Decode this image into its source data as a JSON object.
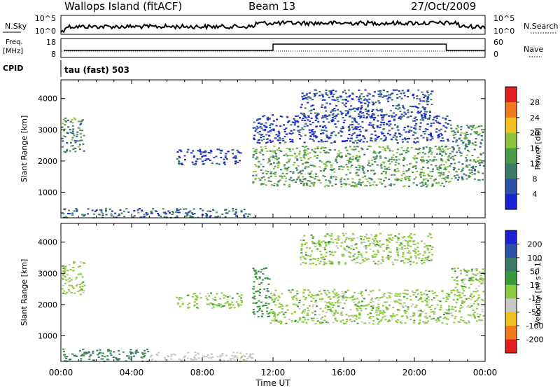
{
  "header": {
    "title": "Wallops Island (fitACF)",
    "beam": "Beam 13",
    "date": "27/Oct/2009"
  },
  "summary_panels": {
    "nsky_label": "N.Sky",
    "nsky_ticks": [
      "10^5",
      "10^0"
    ],
    "nsearch_label": "N.Search",
    "nsearch_ticks": [
      "10^5",
      "10^0"
    ],
    "freq_label": "Freq.",
    "freq_unit": "[MHz]",
    "freq_ticks": [
      "18",
      "8"
    ],
    "nave_label": "Nave",
    "nave_ticks": [
      "60",
      "0"
    ],
    "cpid_label": "CPID",
    "cpid_value": "tau (fast) 503"
  },
  "chart_data": [
    {
      "type": "heatmap",
      "name": "power",
      "ylabel": "Slant Range [km]",
      "yticks": [
        1000,
        2000,
        3000,
        4000
      ],
      "ylim": [
        180,
        4600
      ],
      "xlim": [
        0,
        24
      ],
      "colorbar_label": "Power [dB]",
      "colorbar_ticks": [
        4,
        8,
        12,
        16,
        20,
        24,
        28
      ],
      "colors": [
        "#1a22d6",
        "#2c51a8",
        "#3a7a6a",
        "#4a9a4a",
        "#8cc43c",
        "#f0c020",
        "#f07a20",
        "#e41e1e"
      ],
      "regions": [
        {
          "t0": 0.0,
          "t1": 1.3,
          "r0": 2300,
          "r1": 3400,
          "value": 14
        },
        {
          "t0": 0.0,
          "t1": 11.0,
          "r0": 200,
          "r1": 500,
          "value": 10
        },
        {
          "t0": 6.5,
          "t1": 10.2,
          "r0": 1900,
          "r1": 2400,
          "value": 6
        },
        {
          "t0": 10.8,
          "t1": 22.0,
          "r0": 1200,
          "r1": 2500,
          "value": 16
        },
        {
          "t0": 10.8,
          "t1": 22.0,
          "r0": 2600,
          "r1": 3500,
          "value": 6
        },
        {
          "t0": 13.5,
          "t1": 21.0,
          "r0": 3400,
          "r1": 4300,
          "value": 8
        },
        {
          "t0": 22.0,
          "t1": 23.9,
          "r0": 1400,
          "r1": 3200,
          "value": 14
        }
      ]
    },
    {
      "type": "heatmap",
      "name": "velocity",
      "ylabel": "Slant Range [km]",
      "yticks": [
        1000,
        2000,
        3000,
        4000
      ],
      "ylim": [
        180,
        4600
      ],
      "xlim": [
        0,
        24
      ],
      "colorbar_label": "Velocity [m s^-1]",
      "colorbar_ticks": [
        200,
        100,
        50,
        15,
        -15,
        -50,
        -100,
        -200
      ],
      "colors": [
        "#1a22d6",
        "#2c51a8",
        "#3a7a6a",
        "#3a9a3a",
        "#8ccc3c",
        "#c8c8c8",
        "#f0c020",
        "#f07a20",
        "#e41e1e"
      ],
      "regions": [
        {
          "t0": 0.0,
          "t1": 1.3,
          "r0": 2300,
          "r1": 3400,
          "value": 0
        },
        {
          "t0": 0.0,
          "t1": 5.0,
          "r0": 200,
          "r1": 600,
          "value": 60
        },
        {
          "t0": 5.0,
          "t1": 11.0,
          "r0": 200,
          "r1": 500,
          "value": -30
        },
        {
          "t0": 6.5,
          "t1": 10.2,
          "r0": 1900,
          "r1": 2400,
          "value": 0
        },
        {
          "t0": 10.8,
          "t1": 11.8,
          "r0": 1600,
          "r1": 3200,
          "value": 40
        },
        {
          "t0": 11.8,
          "t1": 22.0,
          "r0": 1400,
          "r1": 2500,
          "value": 0
        },
        {
          "t0": 13.5,
          "t1": 21.0,
          "r0": 3300,
          "r1": 4300,
          "value": 0
        },
        {
          "t0": 22.0,
          "t1": 23.9,
          "r0": 1400,
          "r1": 3200,
          "value": 0
        }
      ]
    }
  ],
  "xaxis": {
    "ticks": [
      "00:00",
      "04:00",
      "08:00",
      "12:00",
      "16:00",
      "20:00",
      "00:00"
    ],
    "label": "Time UT"
  },
  "colors": {
    "frame": "#000000",
    "background": "#ffffff"
  }
}
